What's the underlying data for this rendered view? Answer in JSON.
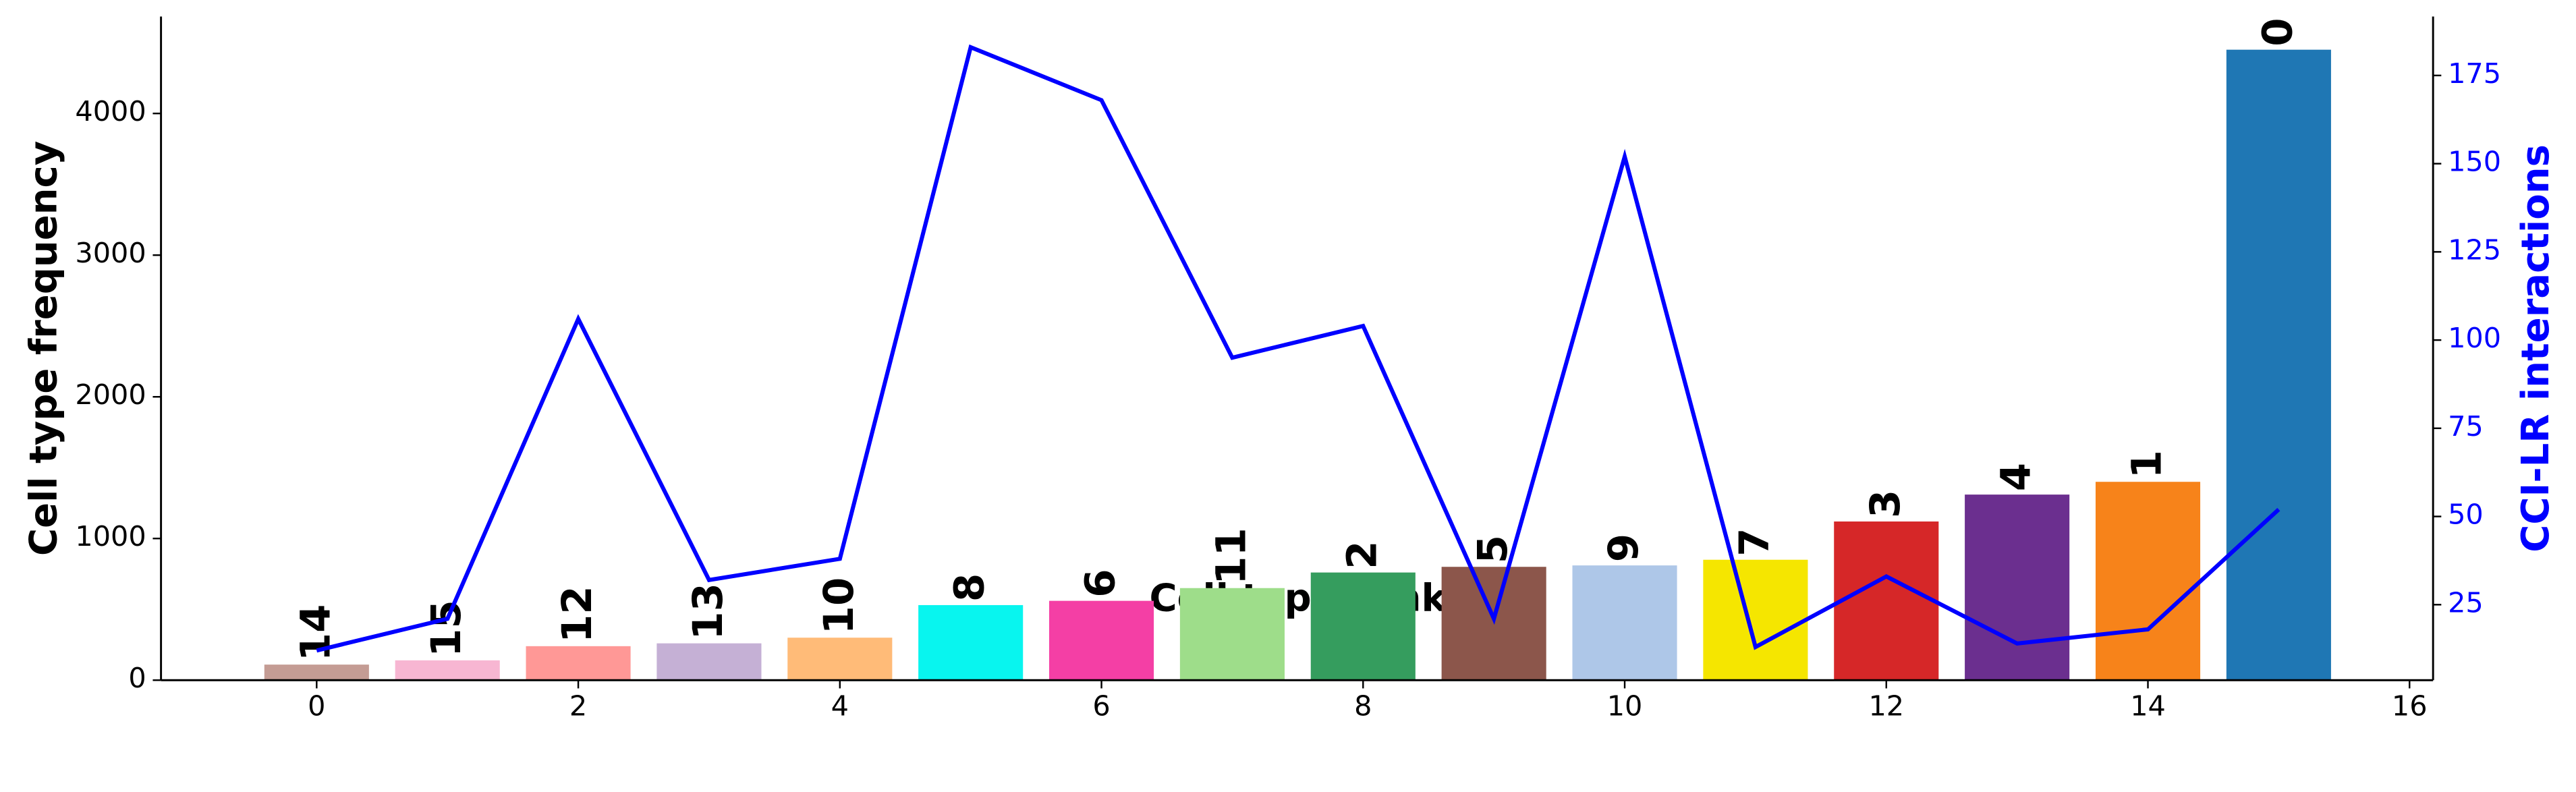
{
  "chart_data": {
    "type": "bar_line",
    "xlabel": "Cell type rank",
    "ylabel": "Cell type frequency",
    "y2label": "CCI-LR interactions",
    "x": [
      0,
      1,
      2,
      3,
      4,
      5,
      6,
      7,
      8,
      9,
      10,
      11,
      12,
      13,
      14,
      15
    ],
    "series": [
      {
        "type": "bar",
        "values": [
          110,
          140,
          240,
          260,
          300,
          530,
          560,
          650,
          760,
          800,
          810,
          850,
          1120,
          1310,
          1400,
          4450
        ],
        "labels": [
          "14",
          "15",
          "12",
          "13",
          "10",
          "8",
          "6",
          "11",
          "2",
          "5",
          "9",
          "7",
          "3",
          "4",
          "1",
          "0"
        ],
        "colors": [
          "#c49c94",
          "#f7b6d2",
          "#ff9896",
          "#c5b0d5",
          "#ffbb78",
          "#08f5ef",
          "#f43fa5",
          "#9edd8a",
          "#359d5e",
          "#8c564b",
          "#aec7e8",
          "#f5e600",
          "#d62728",
          "#6b2f8f",
          "#f7831a",
          "#1f77b4"
        ]
      },
      {
        "type": "line",
        "axis": "y2",
        "color": "#0000ff",
        "values": [
          12,
          21,
          106,
          32,
          38,
          183,
          168,
          95,
          104,
          21,
          152,
          13,
          33,
          14,
          18,
          52
        ]
      }
    ],
    "xlim": [
      -1.19,
      16.18
    ],
    "xticks": [
      0,
      2,
      4,
      6,
      8,
      10,
      12,
      14,
      16
    ],
    "ylim": [
      0,
      4684
    ],
    "yticks": [
      0,
      1000,
      2000,
      3000,
      4000
    ],
    "y2lim": [
      3.6,
      191.7
    ],
    "y2ticks": [
      25,
      50,
      75,
      100,
      125,
      150,
      175
    ],
    "y2color": "#0000ff"
  }
}
